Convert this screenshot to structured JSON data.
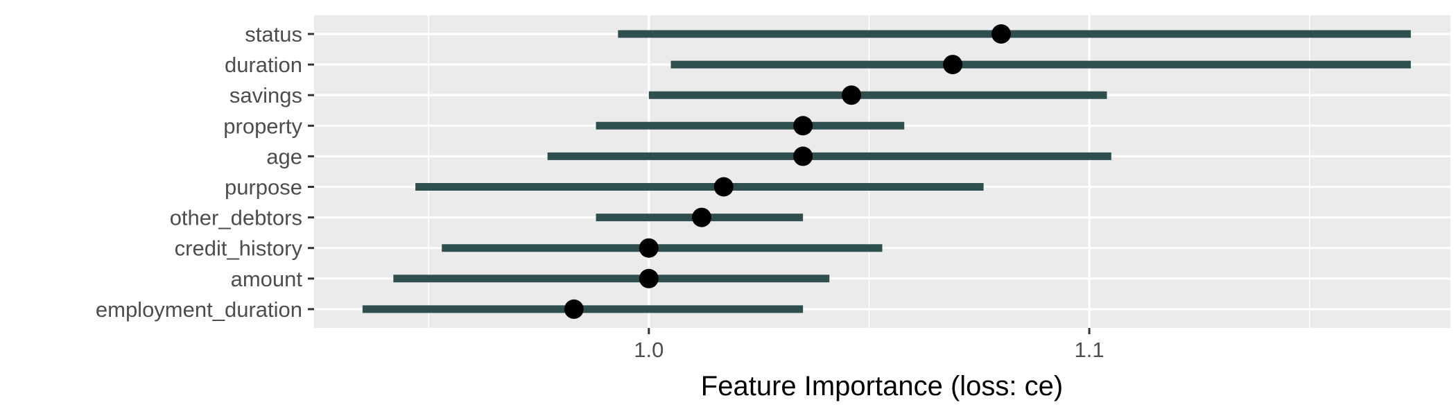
{
  "chart_data": {
    "type": "dot_range",
    "title": "",
    "xlabel": "Feature Importance (loss: ce)",
    "ylabel": "",
    "xlim": [
      0.924,
      1.182
    ],
    "x_ticks": [
      1.0,
      1.1
    ],
    "x_tick_labels": [
      "1.0",
      "1.1"
    ],
    "grid": true,
    "interval_color": "#2f4f4f",
    "point_color": "#000000",
    "panel_color": "#ebebeb",
    "features": [
      {
        "name": "status",
        "importance": 1.08,
        "lower": 0.993,
        "upper": 1.173
      },
      {
        "name": "duration",
        "importance": 1.069,
        "lower": 1.005,
        "upper": 1.173
      },
      {
        "name": "savings",
        "importance": 1.046,
        "lower": 1.0,
        "upper": 1.104
      },
      {
        "name": "property",
        "importance": 1.035,
        "lower": 0.988,
        "upper": 1.058
      },
      {
        "name": "age",
        "importance": 1.035,
        "lower": 0.977,
        "upper": 1.105
      },
      {
        "name": "purpose",
        "importance": 1.017,
        "lower": 0.947,
        "upper": 1.076
      },
      {
        "name": "other_debtors",
        "importance": 1.012,
        "lower": 0.988,
        "upper": 1.035
      },
      {
        "name": "credit_history",
        "importance": 1.0,
        "lower": 0.953,
        "upper": 1.053
      },
      {
        "name": "amount",
        "importance": 1.0,
        "lower": 0.942,
        "upper": 1.041
      },
      {
        "name": "employment_duration",
        "importance": 0.983,
        "lower": 0.935,
        "upper": 1.035
      }
    ]
  }
}
